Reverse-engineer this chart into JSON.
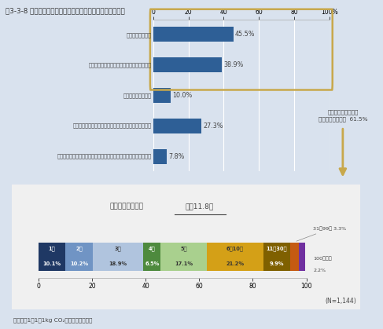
{
  "title": "図3-3-8 「私のチャレンジ宣言」参加者アンケート調査結果",
  "bg_color": "#d9e2ee",
  "bar_chart": {
    "categories": [
      "家族と話題にした",
      "家族以外の友人や知人、同僚等と話題にした",
      "ブログで話題にした",
      "まだ話題にしたりしていないが、今後話題にしてみたい",
      "人と話題にしたり伝えていないし、今後も人に伝えるつもりはない"
    ],
    "values": [
      45.5,
      38.9,
      10.0,
      27.3,
      7.8
    ],
    "bar_color": "#2e5f96",
    "axis_tick_labels": [
      "0",
      "20",
      "40",
      "60",
      "80",
      "100%"
    ]
  },
  "bracket_color": "#c8a84b",
  "annotation_line1": "家族や友人や知人と",
  "annotation_line2": "話題にした（計）  61.5%",
  "arrow_color": "#c8a84b",
  "stacked": {
    "title_left": "伝えた相手の人数",
    "title_right": "平均11.8人",
    "segments": [
      {
        "label_jp": "1人",
        "label_pct": "10.1%",
        "value": 10.1,
        "color": "#1f3864",
        "text_color": "white"
      },
      {
        "label_jp": "2人",
        "label_pct": "10.2%",
        "value": 10.2,
        "color": "#7094c4",
        "text_color": "white"
      },
      {
        "label_jp": "3人",
        "label_pct": "18.9%",
        "value": 18.9,
        "color": "#b0c4de",
        "text_color": "#333333"
      },
      {
        "label_jp": "4人",
        "label_pct": "6.5%",
        "value": 6.5,
        "color": "#4e8a3e",
        "text_color": "white"
      },
      {
        "label_jp": "5人",
        "label_pct": "17.1%",
        "value": 17.1,
        "color": "#a9d08e",
        "text_color": "#333333"
      },
      {
        "label_jp": "6～10人",
        "label_pct": "21.2%",
        "value": 21.2,
        "color": "#d4a017",
        "text_color": "#333333"
      },
      {
        "label_jp": "11～30人",
        "label_pct": "9.9%",
        "value": 9.9,
        "color": "#7f6000",
        "text_color": "white"
      },
      {
        "label_jp": "31～99人",
        "label_pct": "3.3%",
        "value": 3.3,
        "color": "#c55a11",
        "text_color": "white"
      },
      {
        "label_jp": "100人以上",
        "label_pct": "2.2%",
        "value": 2.2,
        "color": "#7030a0",
        "text_color": "white"
      }
    ],
    "n_label": "(N=1,144)",
    "box_color": "#c8a84b",
    "bg_color": "#f0f0f0"
  },
  "source_text": "出典：「1人1日1kg CO₂削減運動」事務局"
}
